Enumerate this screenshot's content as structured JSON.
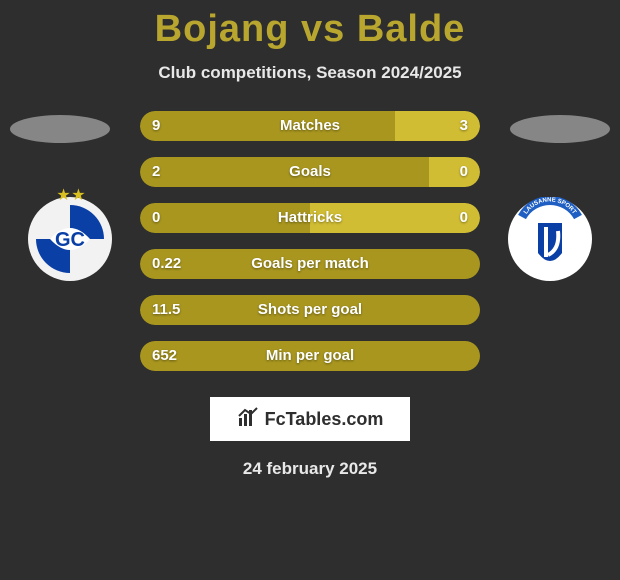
{
  "title": "Bojang vs Balde",
  "title_color": "#b9a62f",
  "subtitle": "Club competitions, Season 2024/2025",
  "date": "24 february 2025",
  "branding": {
    "text": "FcTables.com",
    "icon_name": "fctables-logo-icon"
  },
  "colors": {
    "left_primary": "#a8961f",
    "right_primary": "#d0bd33",
    "halo_fill": "#cfcfcf",
    "background": "#2e2e2e"
  },
  "avatars": {
    "left": {
      "bg": "#f2f2f2",
      "accent": "#0a3fa6",
      "stars_color": "#d9bf1f",
      "stars_text": "★ ★"
    },
    "right": {
      "bg": "#ffffff",
      "accent": "#0a3fa6",
      "banner_color": "#1f5fc4",
      "banner_text": "LAUSANNE SPORT"
    }
  },
  "stats": [
    {
      "label": "Matches",
      "left_val": "9",
      "right_val": "3",
      "left_pct": 75,
      "right_pct": 25
    },
    {
      "label": "Goals",
      "left_val": "2",
      "right_val": "0",
      "left_pct": 85,
      "right_pct": 15
    },
    {
      "label": "Hattricks",
      "left_val": "0",
      "right_val": "0",
      "left_pct": 50,
      "right_pct": 50
    },
    {
      "label": "Goals per match",
      "left_val": "0.22",
      "right_val": "",
      "left_pct": 100,
      "right_pct": 0
    },
    {
      "label": "Shots per goal",
      "left_val": "11.5",
      "right_val": "",
      "left_pct": 100,
      "right_pct": 0
    },
    {
      "label": "Min per goal",
      "left_val": "652",
      "right_val": "",
      "left_pct": 100,
      "right_pct": 0
    }
  ]
}
